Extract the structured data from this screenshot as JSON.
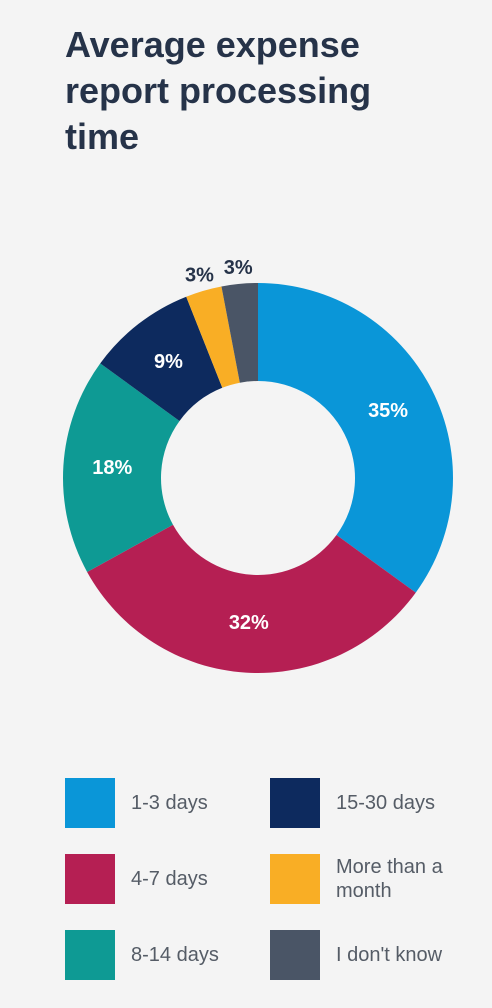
{
  "chart_data": {
    "type": "donut",
    "title": "Average expense report processing time",
    "categories": [
      "1-3 days",
      "4-7 days",
      "8-14 days",
      "15-30 days",
      "More than a month",
      "I don't know"
    ],
    "values": [
      35,
      32,
      18,
      9,
      3,
      3
    ],
    "value_labels": [
      "35%",
      "32%",
      "18%",
      "9%",
      "3%",
      "3%"
    ],
    "colors": [
      "#0a96d8",
      "#b51f53",
      "#0e9a94",
      "#0d2a5e",
      "#f9ae25",
      "#4a5566"
    ]
  }
}
